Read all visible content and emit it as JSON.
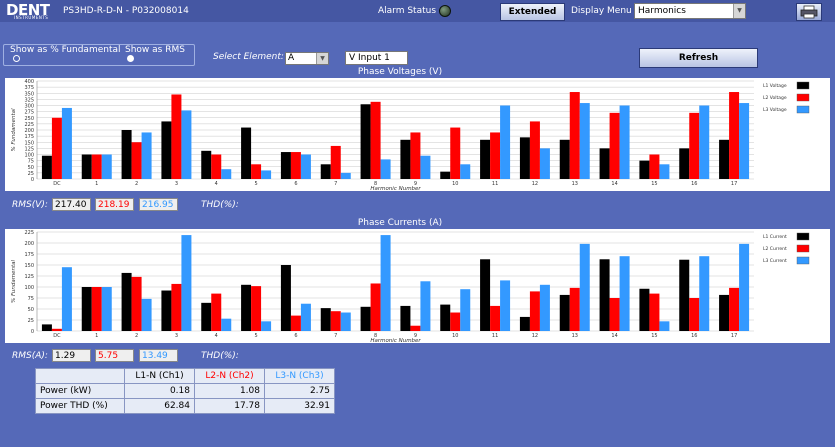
{
  "header": {
    "logo_text": "DENT",
    "logo_sub": "INSTRUMENTS",
    "device_title": "PS3HD-R-D-N - P032008014",
    "alarm_label": "Alarm Status",
    "extended_label": "Extended",
    "display_menu_label": "Display Menu",
    "display_menu_value": "Harmonics"
  },
  "controls": {
    "opt_fundamental": "Show as % Fundamental",
    "opt_rms": "Show as RMS",
    "select_element_label": "Select Element:",
    "element_value": "A",
    "input_value": "V Input 1",
    "refresh_label": "Refresh"
  },
  "colors": {
    "l1": "#000000",
    "l2": "#ff0000",
    "l3": "#3399ff"
  },
  "chart_data": [
    {
      "type": "bar",
      "title": "Phase Voltages (V)",
      "xlabel": "Harmonic Number",
      "ylabel": "% Fundamental",
      "ylim": [
        0,
        400
      ],
      "yticks": [
        0,
        25,
        50,
        75,
        100,
        125,
        150,
        175,
        200,
        225,
        250,
        275,
        300,
        325,
        350,
        375,
        400
      ],
      "grid": true,
      "legend": "right",
      "categories": [
        "DC",
        "1",
        "2",
        "3",
        "4",
        "5",
        "6",
        "7",
        "8",
        "9",
        "10",
        "11",
        "12",
        "13",
        "14",
        "15",
        "16",
        "17"
      ],
      "series": [
        {
          "name": "L1 Voltage",
          "values": [
            95,
            100,
            200,
            235,
            115,
            210,
            110,
            60,
            305,
            160,
            30,
            160,
            170,
            160,
            125,
            75,
            125,
            160
          ]
        },
        {
          "name": "L2 Voltage",
          "values": [
            250,
            100,
            150,
            345,
            100,
            60,
            110,
            135,
            315,
            190,
            210,
            190,
            235,
            355,
            270,
            100,
            270,
            355
          ]
        },
        {
          "name": "L3 Voltage",
          "values": [
            290,
            100,
            190,
            280,
            40,
            35,
            100,
            25,
            80,
            95,
            60,
            300,
            125,
            310,
            300,
            60,
            300,
            310
          ]
        }
      ]
    },
    {
      "type": "bar",
      "title": "Phase Currents (A)",
      "xlabel": "Harmonic Number",
      "ylabel": "% Fundamental",
      "ylim": [
        0,
        225
      ],
      "yticks": [
        0,
        25,
        50,
        75,
        100,
        125,
        150,
        175,
        200,
        225
      ],
      "grid": true,
      "legend": "right",
      "categories": [
        "DC",
        "1",
        "2",
        "3",
        "4",
        "5",
        "6",
        "7",
        "8",
        "9",
        "10",
        "11",
        "12",
        "13",
        "14",
        "15",
        "16",
        "17"
      ],
      "series": [
        {
          "name": "L1 Current",
          "values": [
            15,
            100,
            132,
            92,
            64,
            105,
            150,
            52,
            55,
            57,
            60,
            163,
            32,
            82,
            163,
            96,
            162,
            82
          ]
        },
        {
          "name": "L2 Current",
          "values": [
            5,
            100,
            123,
            107,
            85,
            102,
            35,
            45,
            108,
            12,
            42,
            57,
            90,
            98,
            75,
            85,
            75,
            98
          ]
        },
        {
          "name": "L3 Current",
          "values": [
            145,
            100,
            73,
            218,
            28,
            22,
            62,
            42,
            218,
            113,
            95,
            115,
            105,
            198,
            170,
            22,
            170,
            198
          ]
        }
      ]
    }
  ],
  "rms_v": {
    "label": "RMS(V):",
    "l1": "217.40",
    "l2": "218.19",
    "l3": "216.95",
    "thd_label": "THD(%):"
  },
  "rms_a": {
    "label": "RMS(A):",
    "l1": "1.29",
    "l2": "5.75",
    "l3": "13.49",
    "thd_label": "THD(%):"
  },
  "power_table": {
    "headers": [
      "",
      "L1-N (Ch1)",
      "L2-N (Ch2)",
      "L3-N (Ch3)"
    ],
    "rows": [
      [
        "Power (kW)",
        "0.18",
        "1.08",
        "2.75"
      ],
      [
        "Power THD (%)",
        "62.84",
        "17.78",
        "32.91"
      ]
    ]
  }
}
